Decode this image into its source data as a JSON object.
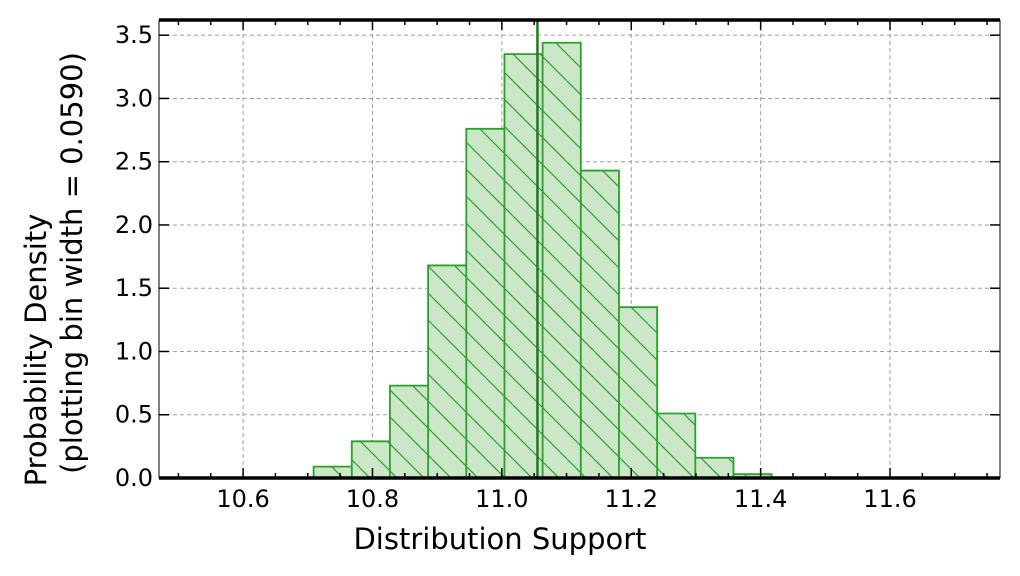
{
  "chart_data": {
    "type": "bar",
    "subtype": "histogram",
    "xlabel": "Distribution Support",
    "ylabel_line1": "Probability Density",
    "ylabel_line2": "(plotting bin width = 0.0590)",
    "xlim": [
      10.47,
      11.77
    ],
    "ylim": [
      0,
      3.62
    ],
    "x_ticks": [
      10.6,
      10.8,
      11.0,
      11.2,
      11.4,
      11.6
    ],
    "x_tick_labels": [
      "10.6",
      "10.8",
      "11.0",
      "11.2",
      "11.4",
      "11.6"
    ],
    "y_ticks": [
      0.0,
      0.5,
      1.0,
      1.5,
      2.0,
      2.5,
      3.0,
      3.5
    ],
    "y_tick_labels": [
      "0.0",
      "0.5",
      "1.0",
      "1.5",
      "2.0",
      "2.5",
      "3.0",
      "3.5"
    ],
    "grid": true,
    "fill_color": "#cce6c8",
    "edge_color": "#2ca02c",
    "hatch": "diagonal",
    "vline_x": 11.055,
    "vline_color": "#1f7a1f",
    "bins": [
      {
        "x0": 10.709,
        "x1": 10.768,
        "value": 0.09
      },
      {
        "x0": 10.768,
        "x1": 10.827,
        "value": 0.29
      },
      {
        "x0": 10.827,
        "x1": 10.886,
        "value": 0.73
      },
      {
        "x0": 10.886,
        "x1": 10.945,
        "value": 1.68
      },
      {
        "x0": 10.945,
        "x1": 11.004,
        "value": 2.76
      },
      {
        "x0": 11.004,
        "x1": 11.063,
        "value": 3.35
      },
      {
        "x0": 11.063,
        "x1": 11.122,
        "value": 3.44
      },
      {
        "x0": 11.122,
        "x1": 11.181,
        "value": 2.43
      },
      {
        "x0": 11.181,
        "x1": 11.24,
        "value": 1.35
      },
      {
        "x0": 11.24,
        "x1": 11.299,
        "value": 0.51
      },
      {
        "x0": 11.299,
        "x1": 11.358,
        "value": 0.16
      },
      {
        "x0": 11.358,
        "x1": 11.417,
        "value": 0.03
      }
    ]
  }
}
